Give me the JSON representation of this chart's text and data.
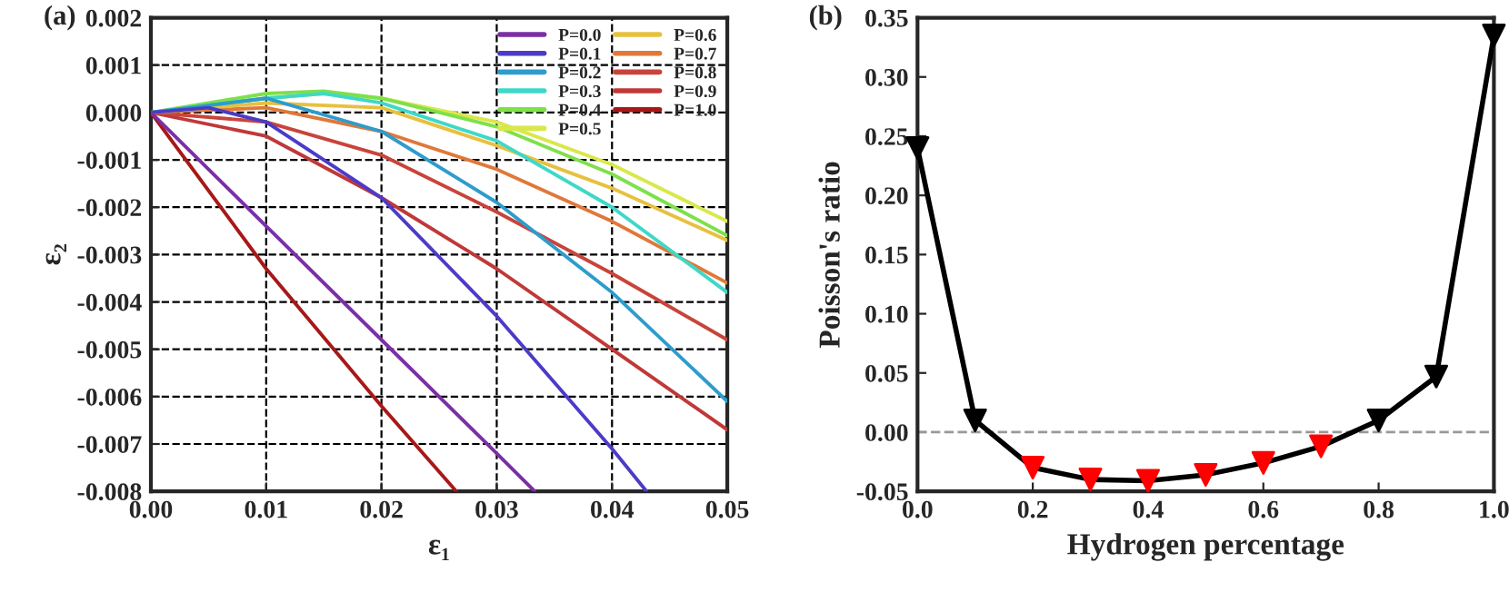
{
  "chart_data": [
    {
      "type": "line",
      "xlabel": "ε₁",
      "ylabel": "ε₂",
      "annotations": [
        "(a)"
      ],
      "xlim": [
        0,
        0.05
      ],
      "ylim": [
        -0.008,
        0.002
      ],
      "xticks": [
        {
          "value": 0,
          "label": "0.00"
        },
        {
          "value": 0.01,
          "label": "0.01"
        },
        {
          "value": 0.02,
          "label": "0.02"
        },
        {
          "value": 0.03,
          "label": "0.03"
        },
        {
          "value": 0.04,
          "label": "0.04"
        },
        {
          "value": 0.05,
          "label": "0.05"
        }
      ],
      "yticks": [
        {
          "value": 0.002,
          "label": "0.002"
        },
        {
          "value": 0.001,
          "label": "0.001"
        },
        {
          "value": 0,
          "label": "0.000"
        },
        {
          "value": -0.001,
          "label": "-0.001"
        },
        {
          "value": -0.002,
          "label": "-0.002"
        },
        {
          "value": -0.003,
          "label": "-0.003"
        },
        {
          "value": -0.004,
          "label": "-0.004"
        },
        {
          "value": -0.005,
          "label": "-0.005"
        },
        {
          "value": -0.006,
          "label": "-0.006"
        },
        {
          "value": -0.007,
          "label": "-0.007"
        },
        {
          "value": -0.008,
          "label": "-0.008"
        }
      ],
      "grid": true,
      "legend": "top right",
      "marker": "none",
      "line_style": "solid",
      "series": [
        {
          "name": "P=0.0",
          "color": "#7b2fa6",
          "x": [
            0,
            0.01,
            0.02,
            0.03,
            0.0333
          ],
          "values": [
            0,
            -0.0024,
            -0.0048,
            -0.0072,
            -0.008
          ]
        },
        {
          "name": "P=0.1",
          "color": "#4b3bc8",
          "x": [
            0,
            0.005,
            0.01,
            0.02,
            0.03,
            0.04,
            0.043
          ],
          "values": [
            0,
            0.0001,
            -0.0002,
            -0.0018,
            -0.0043,
            -0.0071,
            -0.008
          ]
        },
        {
          "name": "P=0.2",
          "color": "#2e9ccc",
          "x": [
            0,
            0.01,
            0.02,
            0.03,
            0.04,
            0.05
          ],
          "values": [
            0,
            0.0003,
            -0.0004,
            -0.0019,
            -0.0038,
            -0.0061
          ]
        },
        {
          "name": "P=0.3",
          "color": "#3fd8c8",
          "x": [
            0,
            0.01,
            0.015,
            0.02,
            0.03,
            0.04,
            0.05
          ],
          "values": [
            0,
            0.0003,
            0.0004,
            0.0002,
            -0.0006,
            -0.002,
            -0.0038
          ]
        },
        {
          "name": "P=0.4",
          "color": "#7ee04a",
          "x": [
            0,
            0.01,
            0.015,
            0.02,
            0.03,
            0.04,
            0.05
          ],
          "values": [
            0,
            0.0004,
            0.00045,
            0.0003,
            -0.0003,
            -0.0013,
            -0.0026
          ]
        },
        {
          "name": "P=0.5",
          "color": "#d8e84a",
          "x": [
            0,
            0.01,
            0.015,
            0.02,
            0.03,
            0.04,
            0.05
          ],
          "values": [
            0,
            0.0003,
            0.0004,
            0.0003,
            -0.0002,
            -0.0011,
            -0.0023
          ]
        },
        {
          "name": "P=0.6",
          "color": "#e8c040",
          "x": [
            0,
            0.01,
            0.02,
            0.03,
            0.04,
            0.05
          ],
          "values": [
            0,
            0.0002,
            0.0001,
            -0.0007,
            -0.0016,
            -0.0027
          ]
        },
        {
          "name": "P=0.7",
          "color": "#e0783a",
          "x": [
            0,
            0.01,
            0.02,
            0.03,
            0.04,
            0.05
          ],
          "values": [
            0,
            0.0001,
            -0.0004,
            -0.0012,
            -0.0023,
            -0.0036
          ]
        },
        {
          "name": "P=0.8",
          "color": "#c8443a",
          "x": [
            0,
            0.01,
            0.02,
            0.03,
            0.04,
            0.05
          ],
          "values": [
            0,
            -0.0002,
            -0.0009,
            -0.0021,
            -0.0034,
            -0.0048
          ]
        },
        {
          "name": "P=0.9",
          "color": "#c03838",
          "x": [
            0,
            0.01,
            0.02,
            0.03,
            0.04,
            0.05
          ],
          "values": [
            0,
            -0.0005,
            -0.0018,
            -0.0033,
            -0.005,
            -0.0067
          ]
        },
        {
          "name": "P=1.0",
          "color": "#a81818",
          "x": [
            0,
            0.01,
            0.02,
            0.0265
          ],
          "values": [
            0,
            -0.0033,
            -0.0062,
            -0.008
          ]
        }
      ]
    },
    {
      "type": "line",
      "xlabel": "Hydrogen percentage",
      "ylabel": "Poisson's ratio",
      "annotations": [
        "(b)"
      ],
      "xlim": [
        0,
        1
      ],
      "ylim": [
        -0.05,
        0.35
      ],
      "xticks": [
        {
          "value": 0,
          "label": "0.0"
        },
        {
          "value": 0.2,
          "label": "0.2"
        },
        {
          "value": 0.4,
          "label": "0.4"
        },
        {
          "value": 0.6,
          "label": "0.6"
        },
        {
          "value": 0.8,
          "label": "0.8"
        },
        {
          "value": 1,
          "label": "1.0"
        }
      ],
      "yticks": [
        {
          "value": -0.05,
          "label": "-0.05"
        },
        {
          "value": 0,
          "label": "0.00"
        },
        {
          "value": 0.05,
          "label": "0.05"
        },
        {
          "value": 0.1,
          "label": "0.10"
        },
        {
          "value": 0.15,
          "label": "0.15"
        },
        {
          "value": 0.2,
          "label": "0.20"
        },
        {
          "value": 0.25,
          "label": "0.25"
        },
        {
          "value": 0.3,
          "label": "0.30"
        },
        {
          "value": 0.35,
          "label": "0.35"
        }
      ],
      "grid": false,
      "marker": "triangle",
      "line_style": "solid",
      "ref_lines": [
        {
          "axis": "y",
          "value": 0,
          "color": "#999999",
          "line_style": "dashed"
        }
      ],
      "series": [
        {
          "color": "#000000",
          "x": [
            0,
            0.1,
            0.2,
            0.3,
            0.4,
            0.5,
            0.6,
            0.7,
            0.8,
            0.9,
            1.0
          ],
          "values": [
            0.24,
            0.01,
            -0.03,
            -0.04,
            -0.041,
            -0.036,
            -0.026,
            -0.012,
            0.01,
            0.047,
            0.335
          ],
          "colors": [
            "#000000",
            "#000000",
            "#ff0000",
            "#ff0000",
            "#ff0000",
            "#ff0000",
            "#ff0000",
            "#ff0000",
            "#000000",
            "#000000",
            "#000000"
          ]
        }
      ]
    }
  ]
}
